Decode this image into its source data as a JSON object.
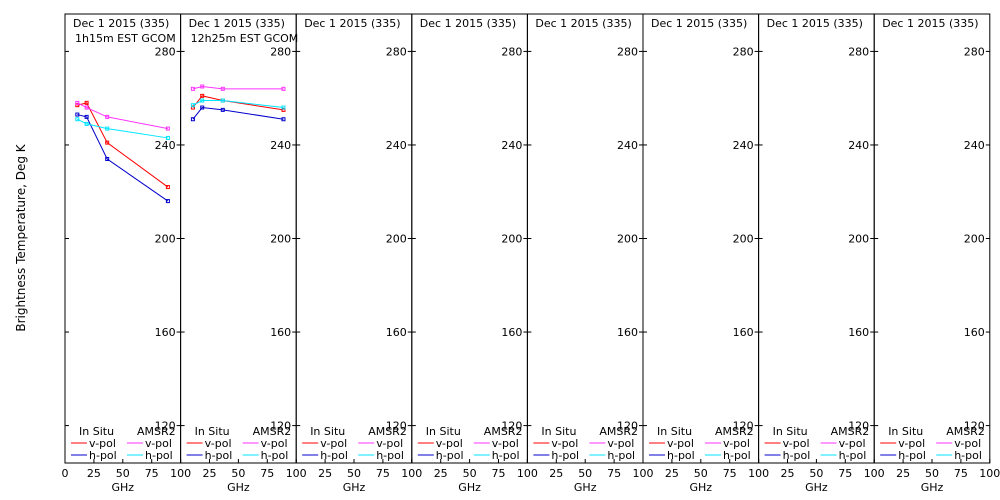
{
  "colors": {
    "insitu_v": "#ff0000",
    "insitu_h": "#0000cc",
    "amsr2_v": "#ff33ff",
    "amsr2_h": "#00e5ff"
  },
  "chart_data": {
    "type": "line",
    "ylabel": "Brightness Temperature, Deg K",
    "xlabel": "GHz",
    "xlim": [
      0,
      100
    ],
    "ylim": [
      104,
      296
    ],
    "xticks": [
      0,
      25,
      50,
      75,
      100
    ],
    "yticks": [
      120,
      160,
      200,
      240,
      280
    ],
    "legend": {
      "insitu_label": "In Situ",
      "amsr2_label": "AMSR2",
      "vpol_label": "v-pol",
      "hpol_label": "h-pol"
    },
    "panels": [
      {
        "date": "Dec 1 2015 (335)",
        "subtitle": "1h15m EST GCOM",
        "series": [
          {
            "name": "v-pol",
            "source": "In Situ",
            "x": [
              10.65,
              18.7,
              36.5,
              89.0
            ],
            "y": [
              257,
              258,
              241,
              222
            ]
          },
          {
            "name": "h-pol",
            "source": "In Situ",
            "x": [
              10.65,
              18.7,
              36.5,
              89.0
            ],
            "y": [
              253,
              252,
              234,
              216
            ]
          },
          {
            "name": "v-pol",
            "source": "AMSR2",
            "x": [
              10.65,
              18.7,
              36.5,
              89.0
            ],
            "y": [
              258,
              256,
              252,
              247
            ]
          },
          {
            "name": "h-pol",
            "source": "AMSR2",
            "x": [
              10.65,
              18.7,
              36.5,
              89.0
            ],
            "y": [
              251,
              249,
              247,
              243
            ]
          }
        ]
      },
      {
        "date": "Dec 1 2015 (335)",
        "subtitle": "12h25m EST GCOM",
        "series": [
          {
            "name": "v-pol",
            "source": "In Situ",
            "x": [
              10.65,
              18.7,
              36.5,
              89.0
            ],
            "y": [
              256,
              261,
              259,
              255
            ]
          },
          {
            "name": "h-pol",
            "source": "In Situ",
            "x": [
              10.65,
              18.7,
              36.5,
              89.0
            ],
            "y": [
              251,
              256,
              255,
              251
            ]
          },
          {
            "name": "v-pol",
            "source": "AMSR2",
            "x": [
              10.65,
              18.7,
              36.5,
              89.0
            ],
            "y": [
              264,
              265,
              264,
              264
            ]
          },
          {
            "name": "h-pol",
            "source": "AMSR2",
            "x": [
              10.65,
              18.7,
              36.5,
              89.0
            ],
            "y": [
              257,
              259,
              259,
              256
            ]
          }
        ]
      },
      {
        "date": "Dec 1 2015 (335)",
        "subtitle": "",
        "series": []
      },
      {
        "date": "Dec 1 2015 (335)",
        "subtitle": "",
        "series": []
      },
      {
        "date": "Dec 1 2015 (335)",
        "subtitle": "",
        "series": []
      },
      {
        "date": "Dec 1 2015 (335)",
        "subtitle": "",
        "series": []
      },
      {
        "date": "Dec 1 2015 (335)",
        "subtitle": "",
        "series": []
      },
      {
        "date": "Dec 1 2015 (335)",
        "subtitle": "",
        "series": []
      }
    ]
  }
}
